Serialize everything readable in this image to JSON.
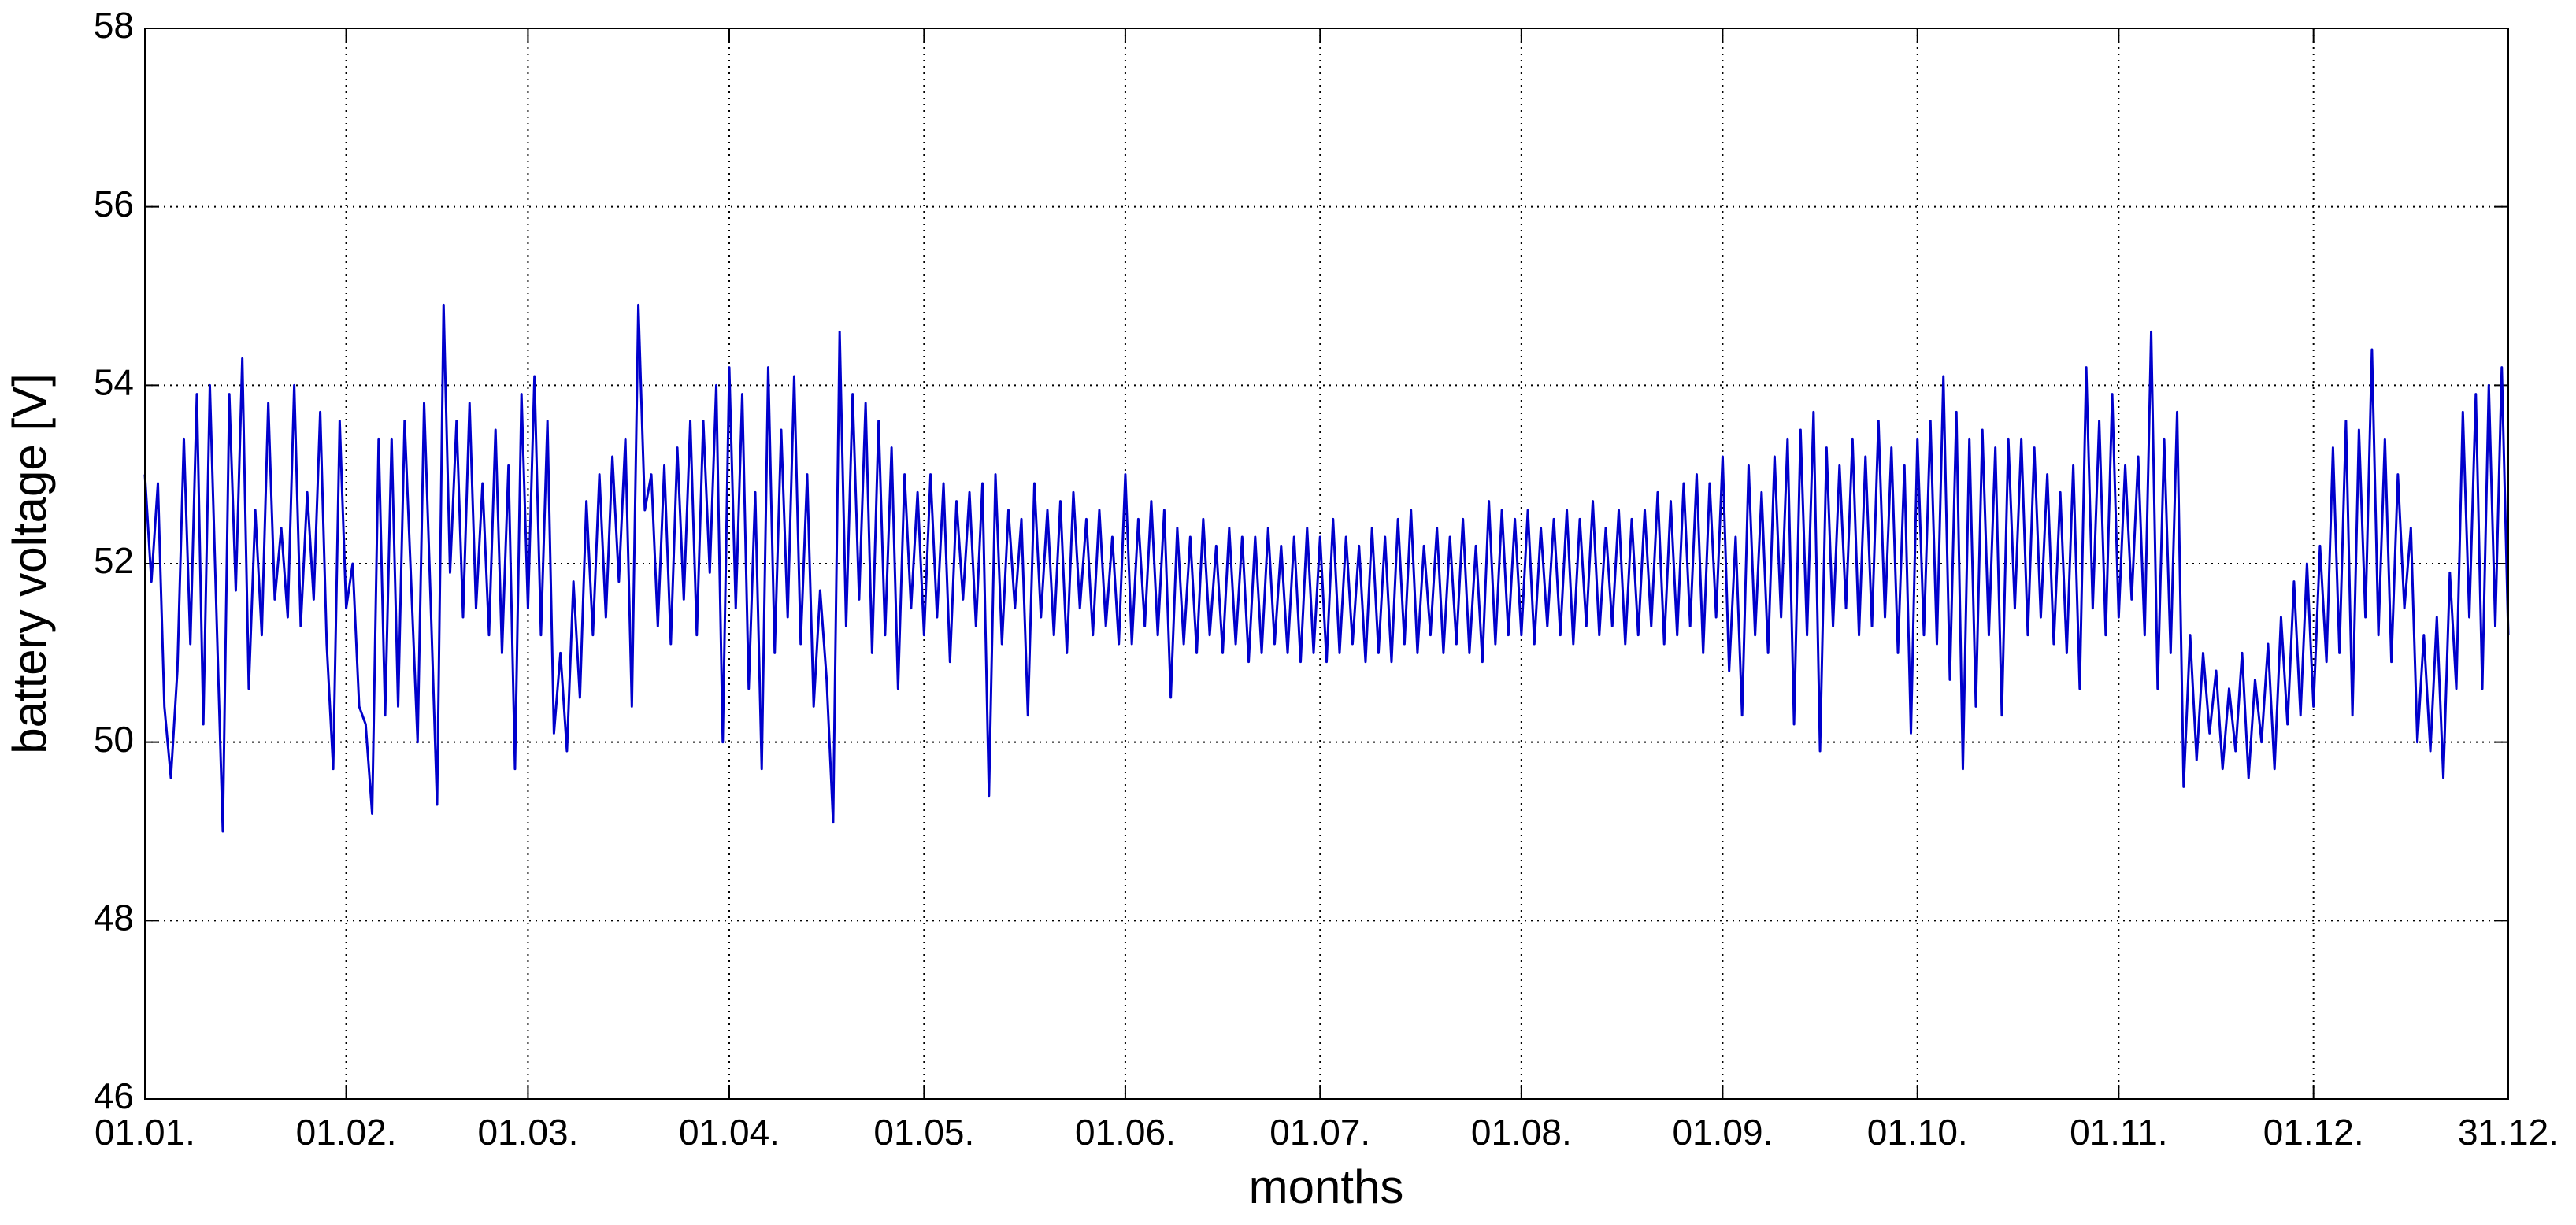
{
  "chart_data": {
    "type": "line",
    "xlabel": "months",
    "ylabel": "battery voltage [V]",
    "color": "#0000cc",
    "grid": true,
    "xlim": [
      1,
      365
    ],
    "xticks": [
      {
        "value": 1,
        "label": "01.01."
      },
      {
        "value": 32,
        "label": "01.02."
      },
      {
        "value": 60,
        "label": "01.03."
      },
      {
        "value": 91,
        "label": "01.04."
      },
      {
        "value": 121,
        "label": "01.05."
      },
      {
        "value": 152,
        "label": "01.06."
      },
      {
        "value": 182,
        "label": "01.07."
      },
      {
        "value": 213,
        "label": "01.08."
      },
      {
        "value": 244,
        "label": "01.09."
      },
      {
        "value": 274,
        "label": "01.10."
      },
      {
        "value": 305,
        "label": "01.11."
      },
      {
        "value": 335,
        "label": "01.12."
      },
      {
        "value": 365,
        "label": "31.12."
      }
    ],
    "ylim": [
      46,
      58
    ],
    "yticks": [
      46,
      48,
      50,
      52,
      54,
      56,
      58
    ],
    "x": [
      1,
      2,
      3,
      4,
      5,
      6,
      7,
      8,
      9,
      10,
      11,
      12,
      13,
      14,
      15,
      16,
      17,
      18,
      19,
      20,
      21,
      22,
      23,
      24,
      25,
      26,
      27,
      28,
      29,
      30,
      31,
      32,
      33,
      34,
      35,
      36,
      37,
      38,
      39,
      40,
      41,
      42,
      43,
      44,
      45,
      46,
      47,
      48,
      49,
      50,
      51,
      52,
      53,
      54,
      55,
      56,
      57,
      58,
      59,
      60,
      61,
      62,
      63,
      64,
      65,
      66,
      67,
      68,
      69,
      70,
      71,
      72,
      73,
      74,
      75,
      76,
      77,
      78,
      79,
      80,
      81,
      82,
      83,
      84,
      85,
      86,
      87,
      88,
      89,
      90,
      91,
      92,
      93,
      94,
      95,
      96,
      97,
      98,
      99,
      100,
      101,
      102,
      103,
      104,
      105,
      106,
      107,
      108,
      109,
      110,
      111,
      112,
      113,
      114,
      115,
      116,
      117,
      118,
      119,
      120,
      121,
      122,
      123,
      124,
      125,
      126,
      127,
      128,
      129,
      130,
      131,
      132,
      133,
      134,
      135,
      136,
      137,
      138,
      139,
      140,
      141,
      142,
      143,
      144,
      145,
      146,
      147,
      148,
      149,
      150,
      151,
      152,
      153,
      154,
      155,
      156,
      157,
      158,
      159,
      160,
      161,
      162,
      163,
      164,
      165,
      166,
      167,
      168,
      169,
      170,
      171,
      172,
      173,
      174,
      175,
      176,
      177,
      178,
      179,
      180,
      181,
      182,
      183,
      184,
      185,
      186,
      187,
      188,
      189,
      190,
      191,
      192,
      193,
      194,
      195,
      196,
      197,
      198,
      199,
      200,
      201,
      202,
      203,
      204,
      205,
      206,
      207,
      208,
      209,
      210,
      211,
      212,
      213,
      214,
      215,
      216,
      217,
      218,
      219,
      220,
      221,
      222,
      223,
      224,
      225,
      226,
      227,
      228,
      229,
      230,
      231,
      232,
      233,
      234,
      235,
      236,
      237,
      238,
      239,
      240,
      241,
      242,
      243,
      244,
      245,
      246,
      247,
      248,
      249,
      250,
      251,
      252,
      253,
      254,
      255,
      256,
      257,
      258,
      259,
      260,
      261,
      262,
      263,
      264,
      265,
      266,
      267,
      268,
      269,
      270,
      271,
      272,
      273,
      274,
      275,
      276,
      277,
      278,
      279,
      280,
      281,
      282,
      283,
      284,
      285,
      286,
      287,
      288,
      289,
      290,
      291,
      292,
      293,
      294,
      295,
      296,
      297,
      298,
      299,
      300,
      301,
      302,
      303,
      304,
      305,
      306,
      307,
      308,
      309,
      310,
      311,
      312,
      313,
      314,
      315,
      316,
      317,
      318,
      319,
      320,
      321,
      322,
      323,
      324,
      325,
      326,
      327,
      328,
      329,
      330,
      331,
      332,
      333,
      334,
      335,
      336,
      337,
      338,
      339,
      340,
      341,
      342,
      343,
      344,
      345,
      346,
      347,
      348,
      349,
      350,
      351,
      352,
      353,
      354,
      355,
      356,
      357,
      358,
      359,
      360,
      361,
      362,
      363,
      364,
      365
    ],
    "values": [
      53.0,
      51.8,
      52.9,
      50.4,
      49.6,
      50.8,
      53.4,
      51.1,
      53.9,
      50.2,
      54.0,
      51.5,
      49.0,
      53.9,
      51.7,
      54.3,
      50.6,
      52.6,
      51.2,
      53.8,
      51.6,
      52.4,
      51.4,
      54.0,
      51.3,
      52.8,
      51.6,
      53.7,
      51.1,
      49.7,
      53.6,
      51.5,
      52.0,
      50.4,
      50.2,
      49.2,
      53.4,
      50.3,
      53.4,
      50.4,
      53.6,
      51.8,
      50.0,
      53.8,
      51.6,
      49.3,
      54.9,
      51.9,
      53.6,
      51.4,
      53.8,
      51.5,
      52.9,
      51.2,
      53.5,
      51.0,
      53.1,
      49.7,
      53.9,
      51.5,
      54.1,
      51.2,
      53.6,
      50.1,
      51.0,
      49.9,
      51.8,
      50.5,
      52.7,
      51.2,
      53.0,
      51.4,
      53.2,
      51.8,
      53.4,
      50.4,
      54.9,
      52.6,
      53.0,
      51.3,
      53.1,
      51.1,
      53.3,
      51.6,
      53.6,
      51.2,
      53.6,
      51.9,
      54.0,
      50.0,
      54.2,
      51.5,
      53.9,
      50.6,
      52.8,
      49.7,
      54.2,
      51.0,
      53.5,
      51.4,
      54.1,
      51.1,
      53.0,
      50.4,
      51.7,
      50.7,
      49.1,
      54.6,
      51.3,
      53.9,
      51.6,
      53.8,
      51.0,
      53.6,
      51.2,
      53.3,
      50.6,
      53.0,
      51.5,
      52.8,
      51.2,
      53.0,
      51.4,
      52.9,
      50.9,
      52.7,
      51.6,
      52.8,
      51.3,
      52.9,
      49.4,
      53.0,
      51.1,
      52.6,
      51.5,
      52.5,
      50.3,
      52.9,
      51.4,
      52.6,
      51.2,
      52.7,
      51.0,
      52.8,
      51.5,
      52.5,
      51.2,
      52.6,
      51.3,
      52.3,
      51.1,
      53.0,
      51.1,
      52.5,
      51.3,
      52.7,
      51.2,
      52.6,
      50.5,
      52.4,
      51.1,
      52.3,
      51.0,
      52.5,
      51.2,
      52.2,
      51.0,
      52.4,
      51.1,
      52.3,
      50.9,
      52.3,
      51.0,
      52.4,
      51.1,
      52.2,
      51.0,
      52.3,
      50.9,
      52.4,
      51.0,
      52.3,
      50.9,
      52.5,
      51.0,
      52.3,
      51.1,
      52.2,
      50.9,
      52.4,
      51.0,
      52.3,
      50.9,
      52.5,
      51.1,
      52.6,
      51.0,
      52.2,
      51.2,
      52.4,
      51.0,
      52.3,
      51.1,
      52.5,
      51.0,
      52.2,
      50.9,
      52.7,
      51.1,
      52.6,
      51.2,
      52.5,
      51.2,
      52.6,
      51.1,
      52.4,
      51.3,
      52.5,
      51.2,
      52.6,
      51.1,
      52.5,
      51.3,
      52.7,
      51.2,
      52.4,
      51.3,
      52.6,
      51.1,
      52.5,
      51.2,
      52.6,
      51.3,
      52.8,
      51.1,
      52.7,
      51.2,
      52.9,
      51.3,
      53.0,
      51.0,
      52.9,
      51.4,
      53.2,
      50.8,
      52.3,
      50.3,
      53.1,
      51.2,
      52.8,
      51.0,
      53.2,
      51.4,
      53.4,
      50.2,
      53.5,
      51.2,
      53.7,
      49.9,
      53.3,
      51.3,
      53.1,
      51.5,
      53.4,
      51.2,
      53.2,
      51.3,
      53.6,
      51.4,
      53.3,
      51.0,
      53.1,
      50.1,
      53.4,
      51.2,
      53.6,
      51.1,
      54.1,
      50.7,
      53.7,
      49.7,
      53.4,
      50.4,
      53.5,
      51.2,
      53.3,
      50.3,
      53.4,
      51.5,
      53.4,
      51.2,
      53.3,
      51.4,
      53.0,
      51.1,
      52.8,
      51.0,
      53.1,
      50.6,
      54.2,
      51.5,
      53.6,
      51.2,
      53.9,
      51.4,
      53.1,
      51.6,
      53.2,
      51.2,
      54.6,
      50.6,
      53.4,
      51.0,
      53.7,
      49.5,
      51.2,
      49.8,
      51.0,
      50.1,
      50.8,
      49.7,
      50.6,
      49.9,
      51.0,
      49.6,
      50.7,
      50.0,
      51.1,
      49.7,
      51.4,
      50.2,
      51.8,
      50.3,
      52.0,
      50.4,
      52.2,
      50.9,
      53.3,
      51.0,
      53.6,
      50.3,
      53.5,
      51.4,
      54.4,
      51.2,
      53.4,
      50.9,
      53.0,
      51.5,
      52.4,
      50.0,
      51.2,
      49.9,
      51.4,
      49.6,
      51.9,
      50.6,
      53.7,
      51.4,
      53.9,
      50.6,
      54.0,
      51.3,
      54.2,
      51.2
    ]
  }
}
